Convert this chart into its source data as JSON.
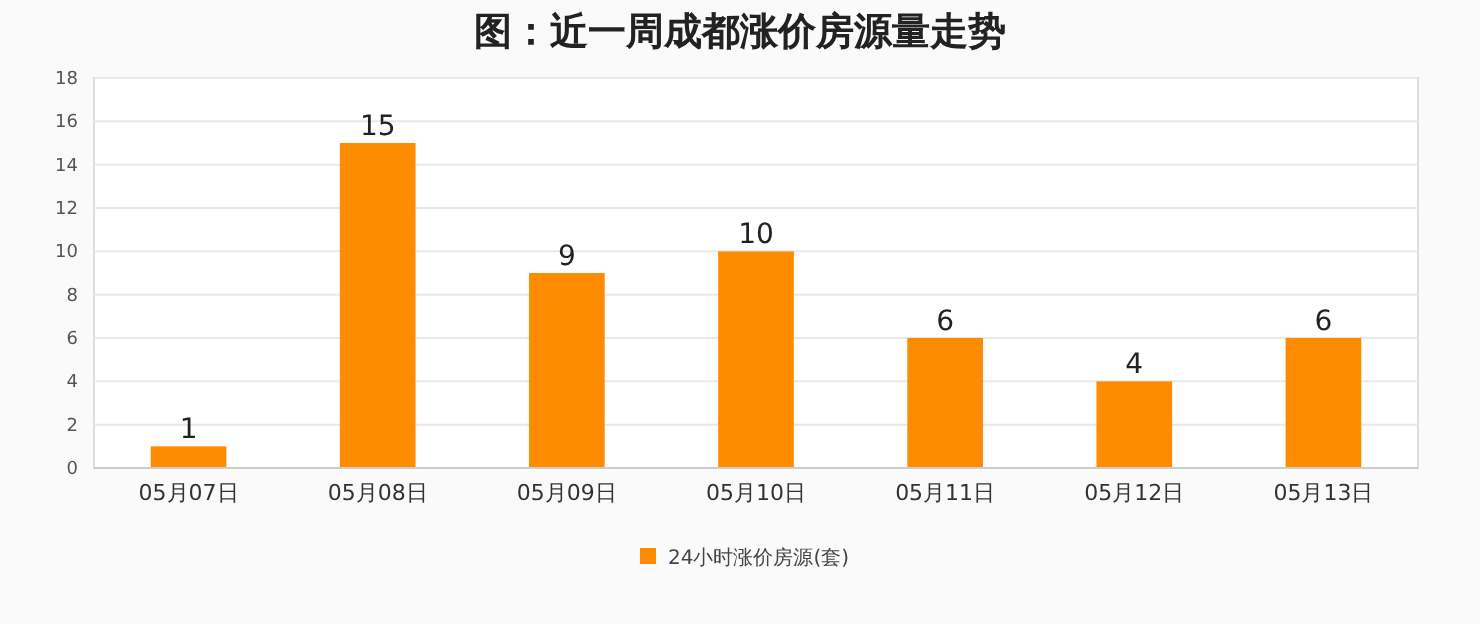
{
  "chart_data": {
    "type": "bar",
    "title": "图：近一周成都涨价房源量走势",
    "categories": [
      "05月07日",
      "05月08日",
      "05月09日",
      "05月10日",
      "05月11日",
      "05月12日",
      "05月13日"
    ],
    "series": [
      {
        "name": "24小时涨价房源(套)",
        "color": "#ff8c00",
        "values": [
          1,
          15,
          9,
          10,
          6,
          4,
          6
        ]
      }
    ],
    "ylim": [
      0,
      18
    ],
    "yticks": [
      0,
      2,
      4,
      6,
      8,
      10,
      12,
      14,
      16,
      18
    ],
    "grid": "y",
    "data_labels": true,
    "legend": "bottom"
  }
}
